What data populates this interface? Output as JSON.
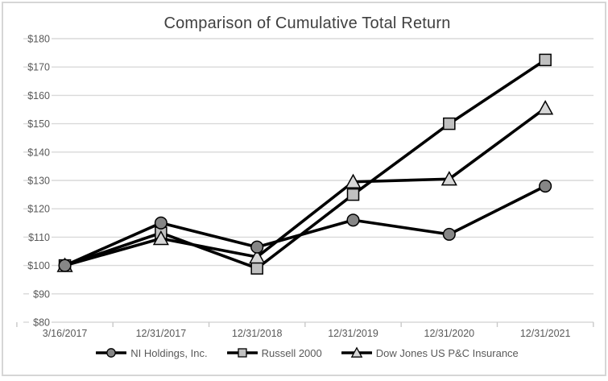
{
  "chart_data": {
    "type": "line",
    "title": "Comparison of Cumulative Total Return",
    "categories": [
      "3/16/2017",
      "12/31/2017",
      "12/31/2018",
      "12/31/2019",
      "12/31/2020",
      "12/31/2021"
    ],
    "series": [
      {
        "name": "NI Holdings, Inc.",
        "marker": "circle",
        "marker_fill": "#868686",
        "values": [
          100,
          115,
          106.5,
          116,
          111,
          128
        ]
      },
      {
        "name": "Russell 2000",
        "marker": "square",
        "marker_fill": "#c0c0c0",
        "values": [
          100,
          111.5,
          99,
          125,
          150,
          172.5
        ]
      },
      {
        "name": "Dow Jones US P&C Insurance",
        "marker": "triangle",
        "marker_fill": "#d6d6d6",
        "values": [
          100,
          109.5,
          103,
          129.5,
          130.5,
          155.5
        ]
      }
    ],
    "y_axis": {
      "min": 80,
      "max": 180,
      "step": 10,
      "tick_values": [
        80,
        90,
        100,
        110,
        120,
        130,
        140,
        150,
        160,
        170,
        180
      ],
      "tick_labels": [
        "$80",
        "$90",
        "$100",
        "$110",
        "$120",
        "$130",
        "$140",
        "$150",
        "$160",
        "$170",
        "$180"
      ]
    },
    "xlabel": "",
    "ylabel": "",
    "grid": true,
    "legend_position": "bottom",
    "colors": {
      "line": "#000000",
      "gridline": "#d9d9d9",
      "axis_tick": "#c9c9c9",
      "axis_label": "#595959",
      "title": "#404040",
      "marker_stroke": "#000000"
    }
  }
}
